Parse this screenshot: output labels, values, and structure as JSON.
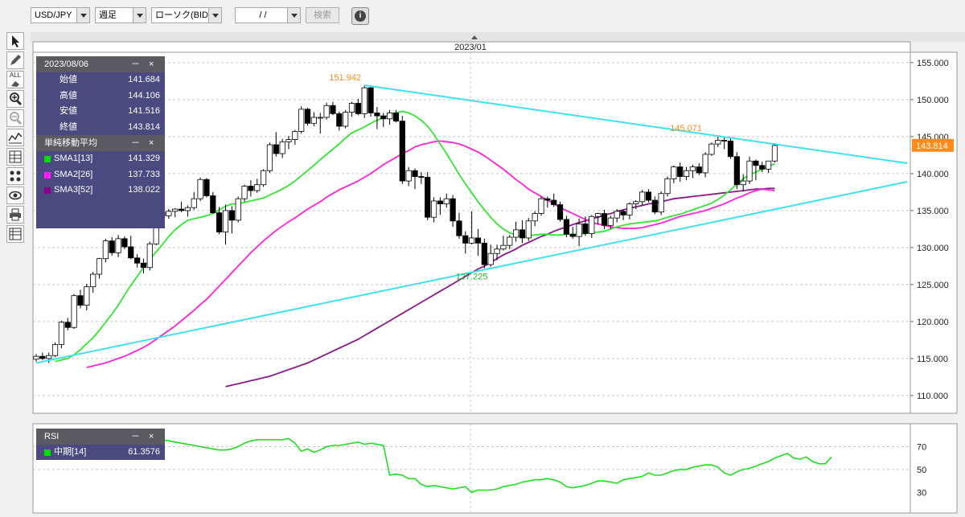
{
  "toolbar": {
    "pair": "USD/JPY",
    "period": "週足",
    "chart_type": "ローソク(BID)",
    "date_input": " /  / ",
    "search_label": "検索",
    "info_symbol": "i"
  },
  "tools": {
    "all_label": "ALL"
  },
  "ohlc_panel": {
    "date": "2023/08/06",
    "minimize": "－",
    "close": "×",
    "rows": [
      {
        "label": "始値",
        "value": "141.684"
      },
      {
        "label": "高値",
        "value": "144.106"
      },
      {
        "label": "安値",
        "value": "141.516"
      },
      {
        "label": "終値",
        "value": "143.814"
      }
    ]
  },
  "sma_panel": {
    "title": "単純移動平均",
    "minimize": "－",
    "close": "×",
    "rows": [
      {
        "label": "SMA1[13]",
        "value": "141.329",
        "color": "#00e000"
      },
      {
        "label": "SMA2[26]",
        "value": "137.733",
        "color": "#ff1aff"
      },
      {
        "label": "SMA3[52]",
        "value": "138.022",
        "color": "#8b008b"
      }
    ]
  },
  "rsi_panel": {
    "title": "RSI",
    "minimize": "－",
    "close": "×",
    "label": "中期[14]",
    "value": "61.3576",
    "color": "#00e000"
  },
  "colors": {
    "trendline": "#40e0f0",
    "sma1": "#33e633",
    "sma2": "#ff22dd",
    "sma3": "#8b1a8b",
    "rsi": "#22dd22",
    "annotation_high": "#ff8c1a",
    "annotation_low": "#22bb22",
    "price_tag": "#ff8c1a"
  },
  "chart_data": {
    "type": "candlestick",
    "xlabel_top": "2023/01",
    "y_ticks": [
      "155.000",
      "150.000",
      "145.000",
      "140.000",
      "135.000",
      "130.000",
      "125.000",
      "120.000",
      "115.000",
      "110.000"
    ],
    "y_range": [
      107.6,
      156.4
    ],
    "rsi_ticks": [
      "70",
      "50",
      "30"
    ],
    "rsi_range": [
      12,
      90
    ],
    "current_price": "143.814",
    "annotations": [
      {
        "text": "151.942",
        "index": 52,
        "price": 151.942,
        "kind": "high"
      },
      {
        "text": "145.071",
        "index": 106,
        "price": 145.071,
        "kind": "high"
      },
      {
        "text": "127.225",
        "index": 69,
        "price": 127.225,
        "kind": "low"
      }
    ],
    "trendlines": [
      {
        "from": [
          52,
          151.942
        ],
        "to": [
          138,
          141.4
        ]
      },
      {
        "from": [
          0,
          114.4
        ],
        "to": [
          138,
          138.9
        ]
      }
    ],
    "candles": [
      [
        114.9,
        115.6,
        114.6,
        115.3
      ],
      [
        115.3,
        115.8,
        114.8,
        115.0
      ],
      [
        115.0,
        115.8,
        114.4,
        115.4
      ],
      [
        115.4,
        117.2,
        115.2,
        116.9
      ],
      [
        116.9,
        120.1,
        116.4,
        119.9
      ],
      [
        119.9,
        120.5,
        118.8,
        119.2
      ],
      [
        119.2,
        123.7,
        119.0,
        123.5
      ],
      [
        123.5,
        124.3,
        121.8,
        122.2
      ],
      [
        122.2,
        125.1,
        121.5,
        124.7
      ],
      [
        124.7,
        126.7,
        123.9,
        126.4
      ],
      [
        126.4,
        128.6,
        125.8,
        128.5
      ],
      [
        128.5,
        131.2,
        128.0,
        130.9
      ],
      [
        130.9,
        131.4,
        128.9,
        129.3
      ],
      [
        129.3,
        131.7,
        128.7,
        131.2
      ],
      [
        131.2,
        131.5,
        129.8,
        130.1
      ],
      [
        130.1,
        131.6,
        128.4,
        128.6
      ],
      [
        128.6,
        129.1,
        127.3,
        127.9
      ],
      [
        127.9,
        128.5,
        126.5,
        127.3
      ],
      [
        127.3,
        130.8,
        126.9,
        130.5
      ],
      [
        130.5,
        135.1,
        130.3,
        134.8
      ],
      [
        134.8,
        135.6,
        133.2,
        134.3
      ],
      [
        134.3,
        135.2,
        133.9,
        134.9
      ],
      [
        134.9,
        135.3,
        134.1,
        135.2
      ],
      [
        135.2,
        136.2,
        134.8,
        135.0
      ],
      [
        135.0,
        135.7,
        134.2,
        135.4
      ],
      [
        135.4,
        137.5,
        135.1,
        136.6
      ],
      [
        136.6,
        139.5,
        136.3,
        139.2
      ],
      [
        139.2,
        139.4,
        136.8,
        137.0
      ],
      [
        137.0,
        137.5,
        134.6,
        134.7
      ],
      [
        134.7,
        135.5,
        131.8,
        132.1
      ],
      [
        132.1,
        135.8,
        130.4,
        135.0
      ],
      [
        135.0,
        135.6,
        131.9,
        133.7
      ],
      [
        133.7,
        136.9,
        133.4,
        136.6
      ],
      [
        136.6,
        138.5,
        136.2,
        138.3
      ],
      [
        138.3,
        139.1,
        136.9,
        137.7
      ],
      [
        137.7,
        139.3,
        137.4,
        138.5
      ],
      [
        138.5,
        140.6,
        138.2,
        140.4
      ],
      [
        140.4,
        144.2,
        140.1,
        143.9
      ],
      [
        143.9,
        145.6,
        142.3,
        142.7
      ],
      [
        142.7,
        144.7,
        142.1,
        144.3
      ],
      [
        144.3,
        145.1,
        143.3,
        144.6
      ],
      [
        144.6,
        145.9,
        143.9,
        145.7
      ],
      [
        145.7,
        149.1,
        145.4,
        148.7
      ],
      [
        148.7,
        148.9,
        146.5,
        146.8
      ],
      [
        146.8,
        148.3,
        146.4,
        147.6
      ],
      [
        147.6,
        148.2,
        145.4,
        147.6
      ],
      [
        147.6,
        149.6,
        147.3,
        149.2
      ],
      [
        149.2,
        149.7,
        147.9,
        148.1
      ],
      [
        148.1,
        148.4,
        145.8,
        146.4
      ],
      [
        146.4,
        148.6,
        146.1,
        148.3
      ],
      [
        148.3,
        149.7,
        147.7,
        149.5
      ],
      [
        149.5,
        150.1,
        147.9,
        148.1
      ],
      [
        148.1,
        151.9,
        147.5,
        151.6
      ],
      [
        151.6,
        151.9,
        147.7,
        148.2
      ],
      [
        148.2,
        149.0,
        146.0,
        147.8
      ],
      [
        147.8,
        148.2,
        146.3,
        147.4
      ],
      [
        147.4,
        148.6,
        146.6,
        148.2
      ],
      [
        148.2,
        148.6,
        146.9,
        147.1
      ],
      [
        147.1,
        147.8,
        138.6,
        139.0
      ],
      [
        139.0,
        140.9,
        138.3,
        140.4
      ],
      [
        140.4,
        140.7,
        137.9,
        139.6
      ],
      [
        139.6,
        140.2,
        138.6,
        139.5
      ],
      [
        139.5,
        140.2,
        133.7,
        134.1
      ],
      [
        134.1,
        136.8,
        133.4,
        136.3
      ],
      [
        136.3,
        136.8,
        134.4,
        135.9
      ],
      [
        135.9,
        137.3,
        135.4,
        136.6
      ],
      [
        136.6,
        137.1,
        132.8,
        133.6
      ],
      [
        133.6,
        134.7,
        131.2,
        131.6
      ],
      [
        131.6,
        132.2,
        129.2,
        130.6
      ],
      [
        130.6,
        134.9,
        130.4,
        131.3
      ],
      [
        131.3,
        132.5,
        128.9,
        130.6
      ],
      [
        130.6,
        131.2,
        127.2,
        127.7
      ],
      [
        127.7,
        130.4,
        127.4,
        129.2
      ],
      [
        129.2,
        130.4,
        128.3,
        129.8
      ],
      [
        129.8,
        131.6,
        129.6,
        130.3
      ],
      [
        130.3,
        131.7,
        129.8,
        131.4
      ],
      [
        131.4,
        133.5,
        130.8,
        132.4
      ],
      [
        132.4,
        133.7,
        130.6,
        131.3
      ],
      [
        131.3,
        134.0,
        130.9,
        133.6
      ],
      [
        133.6,
        134.9,
        132.9,
        134.6
      ],
      [
        134.6,
        136.9,
        134.3,
        136.6
      ],
      [
        136.6,
        136.9,
        135.4,
        136.4
      ],
      [
        136.4,
        137.3,
        135.5,
        135.8
      ],
      [
        135.8,
        136.2,
        133.5,
        133.8
      ],
      [
        133.8,
        134.3,
        131.4,
        131.8
      ],
      [
        131.8,
        132.8,
        131.2,
        131.5
      ],
      [
        131.5,
        133.9,
        130.2,
        133.2
      ],
      [
        133.2,
        134.2,
        131.6,
        131.9
      ],
      [
        131.9,
        134.4,
        131.3,
        134.2
      ],
      [
        134.2,
        134.7,
        133.1,
        134.6
      ],
      [
        134.6,
        135.1,
        132.5,
        133.0
      ],
      [
        133.0,
        134.3,
        132.5,
        134.0
      ],
      [
        134.0,
        135.2,
        133.4,
        134.9
      ],
      [
        134.9,
        135.1,
        133.7,
        134.4
      ],
      [
        134.4,
        136.1,
        133.8,
        135.9
      ],
      [
        135.9,
        136.4,
        135.2,
        136.2
      ],
      [
        136.2,
        137.8,
        135.7,
        137.5
      ],
      [
        137.5,
        137.9,
        136.1,
        136.4
      ],
      [
        136.4,
        136.9,
        134.5,
        134.8
      ],
      [
        134.8,
        137.6,
        134.4,
        137.3
      ],
      [
        137.3,
        139.6,
        136.9,
        139.3
      ],
      [
        139.3,
        141.1,
        138.7,
        140.9
      ],
      [
        140.9,
        141.5,
        138.9,
        139.6
      ],
      [
        139.6,
        140.9,
        139.1,
        140.4
      ],
      [
        140.4,
        141.2,
        139.4,
        140.9
      ],
      [
        140.9,
        141.4,
        139.8,
        140.1
      ],
      [
        140.1,
        142.9,
        139.5,
        142.6
      ],
      [
        142.6,
        144.2,
        142.4,
        144.0
      ],
      [
        144.0,
        145.1,
        143.6,
        144.5
      ],
      [
        144.5,
        145.0,
        143.3,
        144.4
      ],
      [
        144.4,
        144.8,
        142.0,
        142.3
      ],
      [
        142.3,
        142.9,
        137.9,
        138.5
      ],
      [
        138.5,
        139.9,
        137.6,
        139.0
      ],
      [
        139.0,
        142.3,
        138.6,
        141.7
      ],
      [
        141.7,
        141.9,
        139.1,
        141.1
      ],
      [
        141.1,
        141.6,
        140.2,
        140.6
      ],
      [
        140.6,
        141.4,
        140.1,
        141.7
      ],
      [
        141.7,
        144.1,
        141.5,
        143.8
      ]
    ],
    "sma1": [
      114.6,
      114.8,
      115.0,
      115.5,
      116.2,
      117.0,
      117.8,
      118.8,
      119.9,
      121.0,
      122.2,
      123.6,
      124.9,
      126.1,
      127.3,
      128.4,
      129.4,
      130.4,
      131.5,
      132.4,
      133.1,
      133.7,
      133.9,
      134.1,
      134.3,
      134.6,
      135.1,
      135.6,
      135.9,
      135.9,
      136.1,
      136.3,
      136.5,
      136.7,
      137.1,
      137.5,
      137.9,
      138.4,
      139.0,
      139.7,
      140.4,
      141.1,
      141.9,
      142.6,
      143.3,
      144.0,
      144.8,
      145.5,
      145.9,
      146.3,
      146.8,
      147.2,
      147.6,
      148.0,
      148.2,
      148.4,
      148.2,
      147.8,
      147.2,
      146.4,
      145.3,
      144.0,
      142.7,
      141.3,
      139.9,
      138.6,
      137.4,
      136.2,
      135.1,
      134.1,
      133.2,
      132.5,
      132.0,
      131.7,
      131.5,
      131.6,
      131.7,
      131.8,
      131.8,
      131.7,
      131.7,
      131.8,
      131.8,
      131.8,
      131.9,
      132.0,
      132.1,
      132.2,
      132.5,
      132.8,
      133.0,
      133.2,
      133.3,
      133.4,
      133.5,
      133.6,
      133.8,
      134.1,
      134.3,
      134.5,
      134.8,
      135.1,
      135.4,
      135.7,
      136.0,
      136.5,
      137.1,
      137.8,
      138.6,
      139.3,
      139.8,
      140.2,
      140.6,
      141.0,
      141.3
    ],
    "sma2": [
      113.8,
      114.0,
      114.2,
      114.4,
      114.7,
      115.0,
      115.3,
      115.7,
      116.1,
      116.5,
      117.0,
      117.6,
      118.2,
      118.8,
      119.4,
      120.1,
      120.8,
      121.5,
      122.3,
      123.0,
      123.9,
      124.8,
      125.7,
      126.6,
      127.5,
      128.4,
      129.3,
      130.1,
      130.9,
      131.6,
      132.3,
      132.9,
      133.5,
      134.0,
      134.6,
      135.2,
      135.7,
      136.2,
      136.8,
      137.3,
      137.8,
      138.2,
      138.6,
      139.0,
      139.5,
      140.0,
      140.6,
      141.2,
      141.7,
      142.2,
      142.7,
      143.1,
      143.6,
      143.9,
      144.1,
      144.3,
      144.4,
      144.3,
      144.2,
      144.0,
      143.7,
      143.3,
      142.9,
      142.4,
      141.8,
      141.2,
      140.6,
      139.9,
      139.2,
      138.6,
      137.9,
      137.4,
      136.9,
      136.4,
      135.9,
      135.4,
      135.0,
      134.6,
      134.2,
      133.8,
      133.4,
      133.2,
      133.0,
      132.8,
      132.7,
      132.6,
      132.6,
      132.6,
      132.7,
      132.9,
      133.1,
      133.3,
      133.6,
      133.9,
      134.2,
      134.4,
      134.6,
      134.8,
      135.0,
      135.3,
      135.6,
      135.9,
      136.3,
      136.7,
      137.0,
      137.4,
      137.7,
      137.9,
      137.8,
      137.7
    ],
    "sma3": [
      111.2,
      111.4,
      111.6,
      111.8,
      112.0,
      112.2,
      112.4,
      112.6,
      112.9,
      113.2,
      113.5,
      113.8,
      114.1,
      114.4,
      114.8,
      115.2,
      115.6,
      116.0,
      116.4,
      116.8,
      117.2,
      117.6,
      118.1,
      118.6,
      119.1,
      119.6,
      120.1,
      120.6,
      121.1,
      121.6,
      122.1,
      122.6,
      123.1,
      123.6,
      124.1,
      124.6,
      125.1,
      125.6,
      126.1,
      126.6,
      127.1,
      127.5,
      128.0,
      128.5,
      129.0,
      129.4,
      129.8,
      130.3,
      130.7,
      131.1,
      131.5,
      131.8,
      132.2,
      132.5,
      132.8,
      133.1,
      133.4,
      133.6,
      133.9,
      134.1,
      134.4,
      134.6,
      134.9,
      135.1,
      135.3,
      135.5,
      135.7,
      135.9,
      136.0,
      136.2,
      136.4,
      136.6,
      136.7,
      136.8,
      136.9,
      137.0,
      137.1,
      137.2,
      137.3,
      137.4,
      137.5,
      137.6,
      137.7,
      137.8,
      137.9,
      137.9,
      138.0,
      138.0
    ],
    "rsi": [
      61,
      60,
      62,
      64,
      66,
      67,
      68,
      69,
      70,
      71,
      72,
      72,
      73,
      73,
      73,
      74,
      74,
      75,
      75,
      76,
      76,
      75,
      74,
      73,
      72,
      71,
      70,
      69,
      68,
      67,
      67,
      68,
      70,
      73,
      75,
      76,
      76,
      76,
      76,
      76,
      77,
      73,
      66,
      68,
      65,
      67,
      70,
      71,
      71,
      72,
      73,
      74,
      72,
      73,
      72,
      71,
      45,
      46,
      45,
      42,
      42,
      37,
      35,
      36,
      35,
      34,
      33,
      34,
      35,
      30,
      32,
      32,
      32,
      33,
      35,
      36,
      37,
      39,
      40,
      41,
      41,
      42,
      41,
      39,
      35,
      34,
      35,
      36,
      38,
      40,
      40,
      39,
      38,
      41,
      42,
      43,
      44,
      47,
      45,
      45,
      47,
      49,
      50,
      50,
      52,
      53,
      54,
      54,
      52,
      47,
      45,
      48,
      50,
      51,
      53,
      55,
      57,
      60,
      62,
      64,
      60,
      59,
      61,
      57,
      55,
      55,
      61
    ],
    "rsi_start": 0
  }
}
